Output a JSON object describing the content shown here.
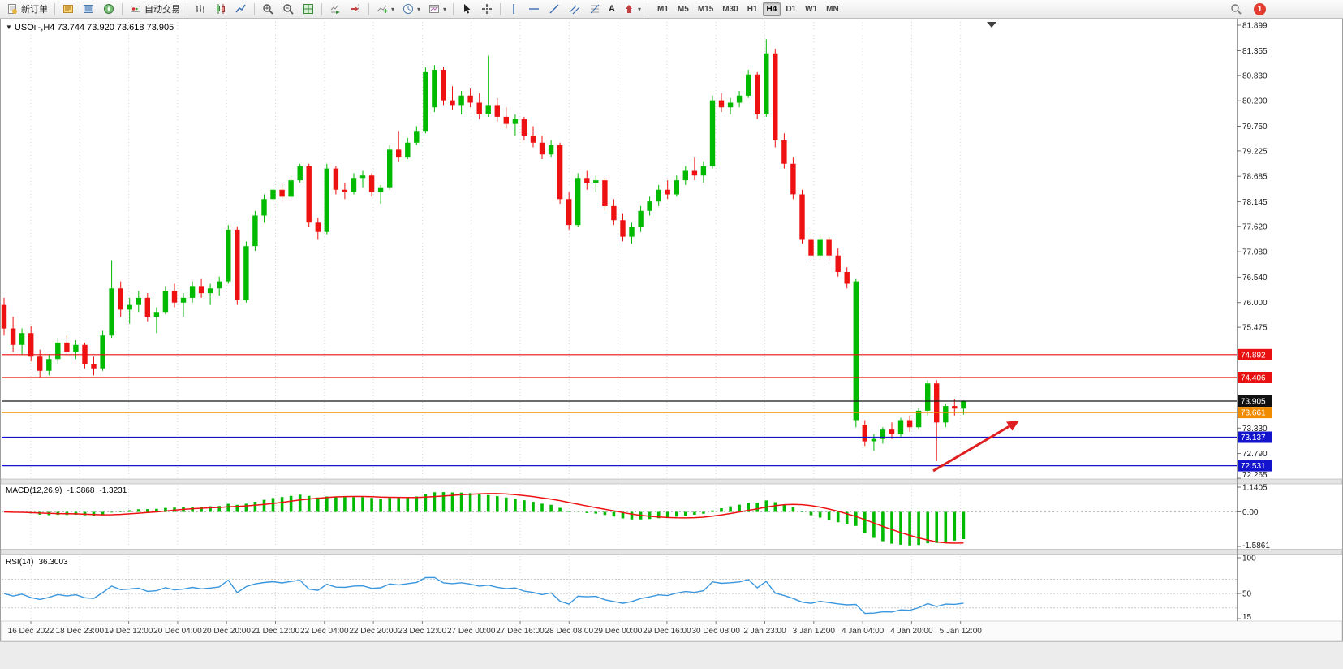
{
  "glyphs": {
    "title_marker": "▼",
    "dropdown": "▾",
    "text_tool": "A"
  },
  "toolbar": {
    "new_order": "新订单",
    "autotrading": "自动交易",
    "timeframes": [
      "M1",
      "M5",
      "M15",
      "M30",
      "H1",
      "H4",
      "D1",
      "W1",
      "MN"
    ],
    "active_timeframe": "H4",
    "notification_count": "1"
  },
  "chart": {
    "symbol": "USOil-",
    "period": "H4",
    "title": "USOil-,H4 73.744 73.920 73.618 73.905",
    "open": "73.744",
    "high": "73.920",
    "low": "73.618",
    "close": "73.905"
  },
  "price_scale": {
    "ticks": [
      "81.899",
      "81.355",
      "80.830",
      "80.290",
      "79.750",
      "79.225",
      "78.685",
      "78.145",
      "77.620",
      "77.080",
      "76.540",
      "76.000",
      "75.475",
      "73.330",
      "72.790",
      "72.265"
    ],
    "badges": [
      {
        "label": "74.892",
        "price": 74.892,
        "color": "#e81010"
      },
      {
        "label": "74.406",
        "price": 74.406,
        "color": "#e81010"
      },
      {
        "label": "73.905",
        "price": 73.905,
        "color": "#111111"
      },
      {
        "label": "73.661",
        "price": 73.661,
        "color": "#f08c00"
      },
      {
        "label": "73.137",
        "price": 73.137,
        "color": "#1414cc"
      },
      {
        "label": "72.531",
        "price": 72.531,
        "color": "#1414cc"
      }
    ]
  },
  "levels": [
    {
      "name": "resistance-line-74892",
      "price": 74.892,
      "color": "#e81010"
    },
    {
      "name": "resistance-line-74406",
      "price": 74.406,
      "color": "#e81010"
    },
    {
      "name": "bid-price-line",
      "price": 73.905,
      "color": "#151515"
    },
    {
      "name": "support-line-73661",
      "price": 73.661,
      "color": "#f08c00"
    },
    {
      "name": "support-line-73137",
      "price": 73.137,
      "color": "#1414cc"
    },
    {
      "name": "support-line-72531",
      "price": 72.531,
      "color": "#1414cc"
    }
  ],
  "chart_data": {
    "type": "candlestick",
    "symbol": "USOil-",
    "timeframe": "H4",
    "price_range": {
      "min": 72.265,
      "max": 81.899
    },
    "up_color": "#00ba00",
    "down_color": "#ee1111",
    "annotation": {
      "type": "arrow",
      "color": "#e02020",
      "direction": "up-right"
    },
    "time_labels": [
      "16 Dec 2022",
      "18 Dec 23:00",
      "19 Dec 12:00",
      "20 Dec 04:00",
      "20 Dec 20:00",
      "21 Dec 12:00",
      "22 Dec 04:00",
      "22 Dec 20:00",
      "23 Dec 12:00",
      "27 Dec 00:00",
      "27 Dec 16:00",
      "28 Dec 08:00",
      "29 Dec 00:00",
      "29 Dec 16:00",
      "30 Dec 08:00",
      "2 Jan 23:00",
      "3 Jan 12:00",
      "4 Jan 04:00",
      "4 Jan 20:00",
      "5 Jan 12:00"
    ],
    "candles_ohlc": [
      [
        75.95,
        76.1,
        75.3,
        75.45
      ],
      [
        75.45,
        75.7,
        74.95,
        75.1
      ],
      [
        75.1,
        75.45,
        74.9,
        75.35
      ],
      [
        75.35,
        75.5,
        74.75,
        74.85
      ],
      [
        74.85,
        75.0,
        74.4,
        74.55
      ],
      [
        74.55,
        74.9,
        74.45,
        74.8
      ],
      [
        74.8,
        75.25,
        74.7,
        75.15
      ],
      [
        75.15,
        75.3,
        74.85,
        74.95
      ],
      [
        74.95,
        75.2,
        74.8,
        75.1
      ],
      [
        75.1,
        75.15,
        74.6,
        74.7
      ],
      [
        74.7,
        74.85,
        74.45,
        74.6
      ],
      [
        74.6,
        75.4,
        74.55,
        75.3
      ],
      [
        75.3,
        76.9,
        75.25,
        76.3
      ],
      [
        76.3,
        76.45,
        75.7,
        75.85
      ],
      [
        75.85,
        76.1,
        75.55,
        75.95
      ],
      [
        75.95,
        76.25,
        75.8,
        76.1
      ],
      [
        76.1,
        76.2,
        75.6,
        75.7
      ],
      [
        75.7,
        75.9,
        75.35,
        75.8
      ],
      [
        75.8,
        76.35,
        75.75,
        76.25
      ],
      [
        76.25,
        76.4,
        75.9,
        76.0
      ],
      [
        76.0,
        76.2,
        75.7,
        76.1
      ],
      [
        76.1,
        76.45,
        76.0,
        76.35
      ],
      [
        76.35,
        76.5,
        76.1,
        76.2
      ],
      [
        76.2,
        76.4,
        75.95,
        76.3
      ],
      [
        76.3,
        76.55,
        76.15,
        76.45
      ],
      [
        76.45,
        77.65,
        76.4,
        77.55
      ],
      [
        77.55,
        77.62,
        75.95,
        76.05
      ],
      [
        76.05,
        77.3,
        76.0,
        77.2
      ],
      [
        77.2,
        77.95,
        77.1,
        77.85
      ],
      [
        77.85,
        78.3,
        77.7,
        78.2
      ],
      [
        78.2,
        78.5,
        78.05,
        78.4
      ],
      [
        78.4,
        78.55,
        78.15,
        78.25
      ],
      [
        78.25,
        78.7,
        78.2,
        78.6
      ],
      [
        78.6,
        78.95,
        78.55,
        78.9
      ],
      [
        78.9,
        78.95,
        77.6,
        77.7
      ],
      [
        77.7,
        77.8,
        77.35,
        77.5
      ],
      [
        77.5,
        78.95,
        77.45,
        78.85
      ],
      [
        78.85,
        78.9,
        78.3,
        78.4
      ],
      [
        78.4,
        78.55,
        78.2,
        78.35
      ],
      [
        78.35,
        78.75,
        78.3,
        78.65
      ],
      [
        78.65,
        78.8,
        78.45,
        78.7
      ],
      [
        78.7,
        78.75,
        78.25,
        78.35
      ],
      [
        78.35,
        78.5,
        78.1,
        78.45
      ],
      [
        78.45,
        79.35,
        78.4,
        79.25
      ],
      [
        79.25,
        79.65,
        79.0,
        79.1
      ],
      [
        79.1,
        79.5,
        79.05,
        79.4
      ],
      [
        79.4,
        79.75,
        79.35,
        79.65
      ],
      [
        79.65,
        81.0,
        79.6,
        80.9
      ],
      [
        80.15,
        81.05,
        80.05,
        80.95
      ],
      [
        80.95,
        81.0,
        80.2,
        80.3
      ],
      [
        80.3,
        80.6,
        80.1,
        80.2
      ],
      [
        80.2,
        80.5,
        80.0,
        80.4
      ],
      [
        80.4,
        80.55,
        80.15,
        80.25
      ],
      [
        80.25,
        80.45,
        79.9,
        80.0
      ],
      [
        80.0,
        81.25,
        79.95,
        80.2
      ],
      [
        80.2,
        80.35,
        79.85,
        79.95
      ],
      [
        79.95,
        80.15,
        79.7,
        79.8
      ],
      [
        79.8,
        80.0,
        79.55,
        79.9
      ],
      [
        79.9,
        79.95,
        79.45,
        79.55
      ],
      [
        79.55,
        79.75,
        79.3,
        79.4
      ],
      [
        79.4,
        79.55,
        79.05,
        79.15
      ],
      [
        79.15,
        79.45,
        79.1,
        79.35
      ],
      [
        79.35,
        79.4,
        78.1,
        78.2
      ],
      [
        78.2,
        78.35,
        77.55,
        77.65
      ],
      [
        77.65,
        78.75,
        77.6,
        78.65
      ],
      [
        78.65,
        78.8,
        78.4,
        78.55
      ],
      [
        78.55,
        78.7,
        78.35,
        78.6
      ],
      [
        78.6,
        78.65,
        77.95,
        78.05
      ],
      [
        78.05,
        78.2,
        77.65,
        77.75
      ],
      [
        77.75,
        77.9,
        77.3,
        77.4
      ],
      [
        77.4,
        77.7,
        77.25,
        77.6
      ],
      [
        77.6,
        78.05,
        77.5,
        77.95
      ],
      [
        77.95,
        78.25,
        77.85,
        78.15
      ],
      [
        78.15,
        78.5,
        78.05,
        78.4
      ],
      [
        78.4,
        78.6,
        78.2,
        78.3
      ],
      [
        78.3,
        78.7,
        78.25,
        78.6
      ],
      [
        78.6,
        78.9,
        78.5,
        78.8
      ],
      [
        78.8,
        79.1,
        78.6,
        78.7
      ],
      [
        78.7,
        79.0,
        78.55,
        78.9
      ],
      [
        78.9,
        80.4,
        78.85,
        80.3
      ],
      [
        80.3,
        80.45,
        80.05,
        80.15
      ],
      [
        80.15,
        80.35,
        80.0,
        80.25
      ],
      [
        80.25,
        80.5,
        80.15,
        80.4
      ],
      [
        80.4,
        80.95,
        80.35,
        80.85
      ],
      [
        80.85,
        80.9,
        79.9,
        80.0
      ],
      [
        80.0,
        81.6,
        79.95,
        81.3
      ],
      [
        81.3,
        81.4,
        79.3,
        79.45
      ],
      [
        79.45,
        79.6,
        78.85,
        78.95
      ],
      [
        78.95,
        79.1,
        78.2,
        78.3
      ],
      [
        78.3,
        78.4,
        77.25,
        77.35
      ],
      [
        77.35,
        77.5,
        76.9,
        77.0
      ],
      [
        77.0,
        77.45,
        76.95,
        77.35
      ],
      [
        77.35,
        77.4,
        76.9,
        77.0
      ],
      [
        77.0,
        77.15,
        76.55,
        76.65
      ],
      [
        76.65,
        76.75,
        76.3,
        76.4
      ],
      [
        73.5,
        76.5,
        73.35,
        76.45
      ],
      [
        73.4,
        73.5,
        72.95,
        73.05
      ],
      [
        73.05,
        73.2,
        72.85,
        73.1
      ],
      [
        73.1,
        73.35,
        73.0,
        73.3
      ],
      [
        73.3,
        73.45,
        73.1,
        73.2
      ],
      [
        73.2,
        73.55,
        73.15,
        73.5
      ],
      [
        73.5,
        73.6,
        73.25,
        73.35
      ],
      [
        73.35,
        73.75,
        73.3,
        73.7
      ],
      [
        73.7,
        74.35,
        73.6,
        74.28
      ],
      [
        74.28,
        74.35,
        72.63,
        73.45
      ],
      [
        73.45,
        73.85,
        73.35,
        73.8
      ],
      [
        73.8,
        73.95,
        73.6,
        73.744
      ],
      [
        73.744,
        73.92,
        73.618,
        73.905
      ]
    ]
  },
  "macd": {
    "name": "MACD(12,26,9)",
    "value_main": "-1.3868",
    "value_signal": "-1.3231",
    "fast": 12,
    "slow": 26,
    "signal": 9,
    "scale_labels": [
      "1.1405",
      "0.00",
      "-1.5861"
    ],
    "scale_max": 1.1405,
    "scale_min": -1.5861,
    "histogram_color": "#00ba00",
    "signal_color": "#ee1111"
  },
  "rsi": {
    "name": "RSI(14)",
    "value": "36.3003",
    "period": 14,
    "scale_labels": [
      "100",
      "50",
      "15"
    ],
    "scale_max": 100,
    "scale_min": 15,
    "levels": [
      70,
      50,
      30
    ],
    "line_color": "#3a96dd"
  }
}
